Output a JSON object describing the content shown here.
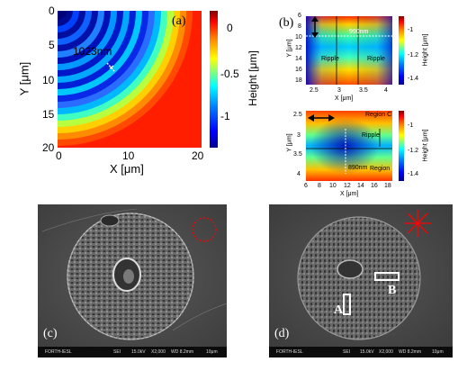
{
  "panel_a": {
    "label": "(a)",
    "annotation": "1023nm",
    "xlabel": "X [μm]",
    "ylabel": "Y [μm]",
    "xticks": [
      "0",
      "10",
      "20"
    ],
    "yticks": [
      "0",
      "5",
      "10",
      "15",
      "20"
    ],
    "colorbar_label": "Height [μm]",
    "colorbar_ticks": [
      "0",
      "-0.5",
      "-1"
    ]
  },
  "panel_b": {
    "label": "(b)",
    "top": {
      "annotation": "990nm",
      "regions": [
        "Ripple",
        "Ripple"
      ],
      "xlabel": "X [μm]",
      "ylabel": "Y [μm]",
      "xticks": [
        "2.5",
        "3",
        "3.5",
        "4"
      ],
      "yticks": [
        "6",
        "8",
        "10",
        "12",
        "14",
        "16",
        "18"
      ],
      "colorbar_label": "Height [μm]",
      "colorbar_ticks": [
        "-1",
        "-1.2",
        "-1.4"
      ]
    },
    "bottom": {
      "annotation": "890nm",
      "regions": [
        "Region C",
        "Ripple",
        "Region"
      ],
      "xlabel": "X [μm]",
      "ylabel": "Y [μm]",
      "xticks": [
        "6",
        "8",
        "10",
        "12",
        "14",
        "16",
        "18"
      ],
      "yticks": [
        "2.5",
        "3",
        "3.5",
        "4"
      ],
      "colorbar_label": "Height [μm]",
      "colorbar_ticks": [
        "-1",
        "-1.2",
        "-1.4"
      ]
    }
  },
  "panel_c": {
    "label": "(c)",
    "infobar": [
      "FORTH-IESL",
      "SEI",
      "15.0kV",
      "X2,000",
      "WD 8.2mm",
      "10μm"
    ]
  },
  "panel_d": {
    "label": "(d)",
    "region_a": "A",
    "region_b": "B",
    "infobar": [
      "FORTH-IESL",
      "SEI",
      "15.0kV",
      "X2,000",
      "WD 8.2mm",
      "10μm"
    ]
  },
  "colors": {
    "polarization_marker": "#ff0000",
    "colormap": "jet"
  }
}
